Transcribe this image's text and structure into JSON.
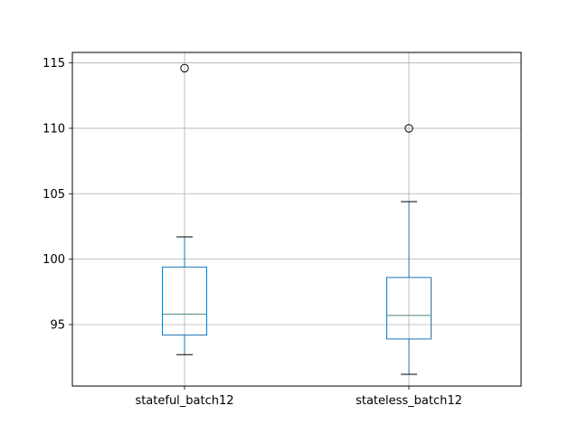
{
  "chart_data": {
    "type": "box",
    "categories": [
      "stateful_batch12",
      "stateless_batch12"
    ],
    "boxes": [
      {
        "category": "stateful_batch12",
        "whisker_low": 92.7,
        "q1": 94.2,
        "median": 95.8,
        "q3": 99.4,
        "whisker_high": 101.7,
        "fliers": [
          114.6
        ]
      },
      {
        "category": "stateless_batch12",
        "whisker_low": 91.2,
        "q1": 93.9,
        "median": 95.7,
        "q3": 98.6,
        "whisker_high": 104.4,
        "fliers": [
          110.0
        ]
      }
    ],
    "yticks": [
      95,
      100,
      105,
      110,
      115
    ],
    "ylim": [
      90.3,
      115.8
    ],
    "grid": true,
    "colors": {
      "box": "#1f77b4",
      "median": "#4d8a6e",
      "whisker_cap": "#000000",
      "grid": "#b0b0b0",
      "axes": "#000000"
    }
  }
}
